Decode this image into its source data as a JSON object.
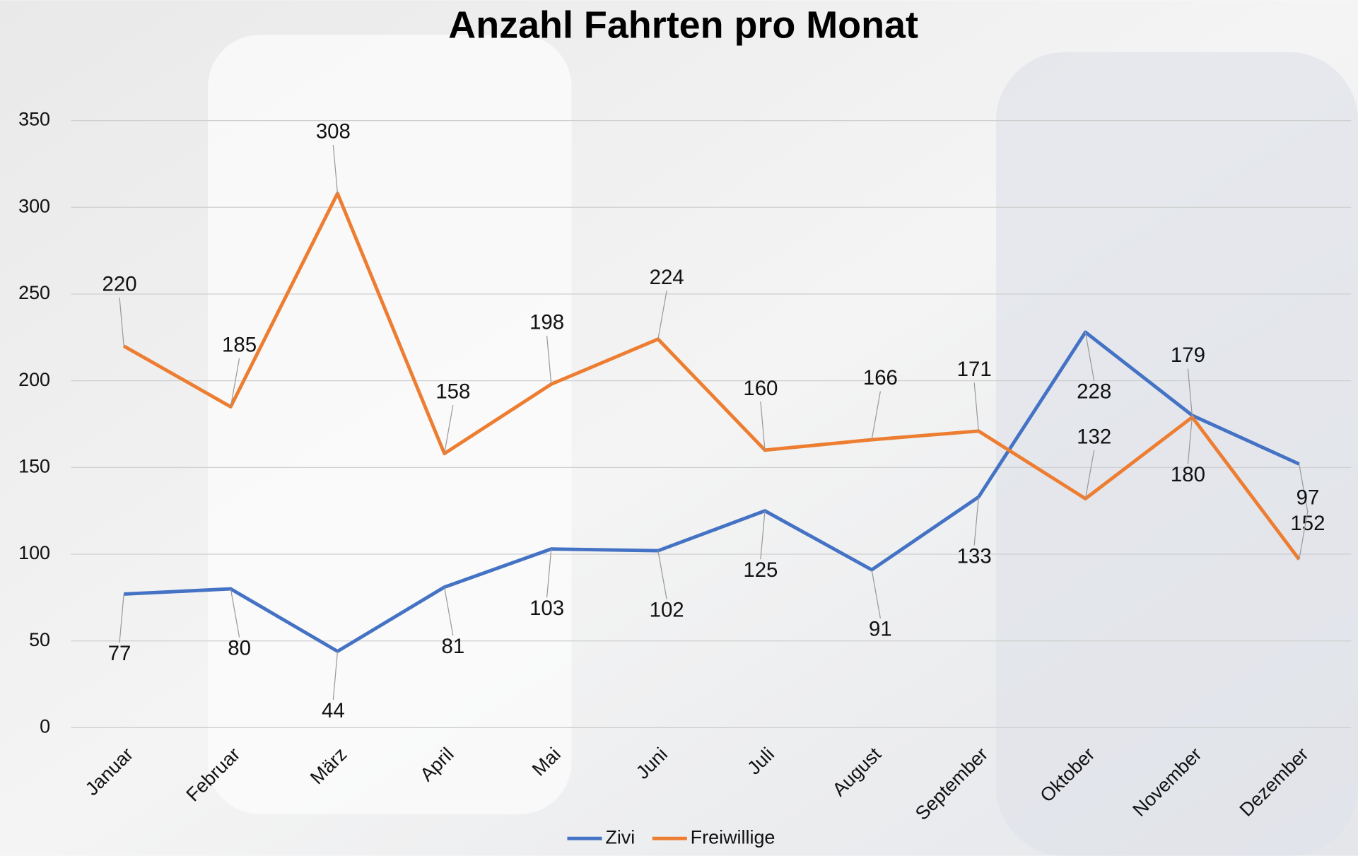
{
  "chart_data": {
    "type": "line",
    "title": "Anzahl Fahrten pro Monat",
    "categories": [
      "Januar",
      "Februar",
      "März",
      "April",
      "Mai",
      "Juni",
      "Juli",
      "August",
      "September",
      "Oktober",
      "November",
      "Dezember"
    ],
    "series": [
      {
        "name": "Zivi",
        "color": "#4472c4",
        "values": [
          77,
          80,
          44,
          81,
          103,
          102,
          125,
          91,
          133,
          228,
          180,
          152
        ]
      },
      {
        "name": "Freiwillige",
        "color": "#ed7d31",
        "values": [
          220,
          185,
          308,
          158,
          198,
          224,
          160,
          166,
          171,
          132,
          179,
          97
        ]
      }
    ],
    "ylim": [
      0,
      350
    ],
    "yticks": [
      0,
      50,
      100,
      150,
      200,
      250,
      300,
      350
    ],
    "grid": true,
    "legend": "bottom"
  }
}
